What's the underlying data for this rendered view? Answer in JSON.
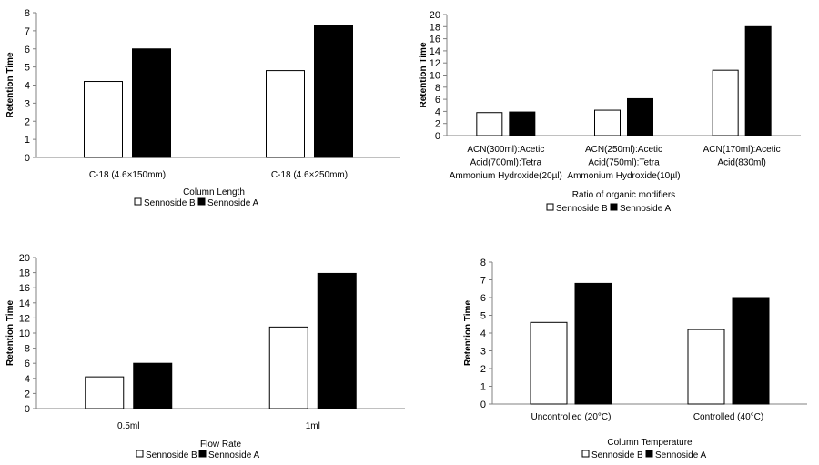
{
  "colors": {
    "sennoside_b": "#ffffff",
    "sennoside_a": "#000000",
    "axis": "#808080",
    "edge": "#000000"
  },
  "chart_data": [
    {
      "type": "bar",
      "categories": [
        "C-18 (4.6×150mm)",
        "C-18 (4.6×250mm)"
      ],
      "series": [
        {
          "name": "Sennoside B",
          "values": [
            4.2,
            4.8
          ]
        },
        {
          "name": "Sennoside A",
          "values": [
            6.0,
            7.3
          ]
        }
      ],
      "xlabel": "Column Length",
      "ylabel": "Retention Time",
      "ylim": [
        0,
        8
      ],
      "yticks": [
        0,
        1,
        2,
        3,
        4,
        5,
        6,
        7,
        8
      ],
      "grid": false,
      "legend": "bottom"
    },
    {
      "type": "bar",
      "categories": [
        "ACN(300ml):Acetic Acid(700ml):Tetra Ammonium Hydroxide(20µl)",
        "ACN(250ml):Acetic Acid(750ml):Tetra Ammonium Hydroxide(10µl)",
        "ACN(170ml):Acetic Acid(830ml)"
      ],
      "series": [
        {
          "name": "Sennoside B",
          "values": [
            3.8,
            4.2,
            10.8
          ]
        },
        {
          "name": "Sennoside A",
          "values": [
            3.9,
            6.1,
            18.0
          ]
        }
      ],
      "xlabel": "Ratio of organic modifiers",
      "ylabel": "Retention Time",
      "ylim": [
        0,
        20
      ],
      "yticks": [
        0,
        2,
        4,
        6,
        8,
        10,
        12,
        14,
        16,
        18,
        20
      ],
      "grid": false,
      "legend": "bottom"
    },
    {
      "type": "bar",
      "categories": [
        "0.5ml",
        "1ml"
      ],
      "series": [
        {
          "name": "Sennoside B",
          "values": [
            4.2,
            10.8
          ]
        },
        {
          "name": "Sennoside A",
          "values": [
            6.0,
            17.9
          ]
        }
      ],
      "xlabel": "Flow Rate",
      "ylabel": "Retention Time",
      "ylim": [
        0,
        20
      ],
      "yticks": [
        0,
        2,
        4,
        6,
        8,
        10,
        12,
        14,
        16,
        18,
        20
      ],
      "grid": false,
      "legend": "bottom"
    },
    {
      "type": "bar",
      "categories": [
        "Uncontrolled (20°C)",
        "Controlled (40°C)"
      ],
      "series": [
        {
          "name": "Sennoside B",
          "values": [
            4.6,
            4.2
          ]
        },
        {
          "name": "Sennoside A",
          "values": [
            6.8,
            6.0
          ]
        }
      ],
      "xlabel": "Column Temperature",
      "ylabel": "Retention Time",
      "ylim": [
        0,
        8
      ],
      "yticks": [
        0,
        1,
        2,
        3,
        4,
        5,
        6,
        7,
        8
      ],
      "grid": false,
      "legend": "bottom"
    }
  ]
}
